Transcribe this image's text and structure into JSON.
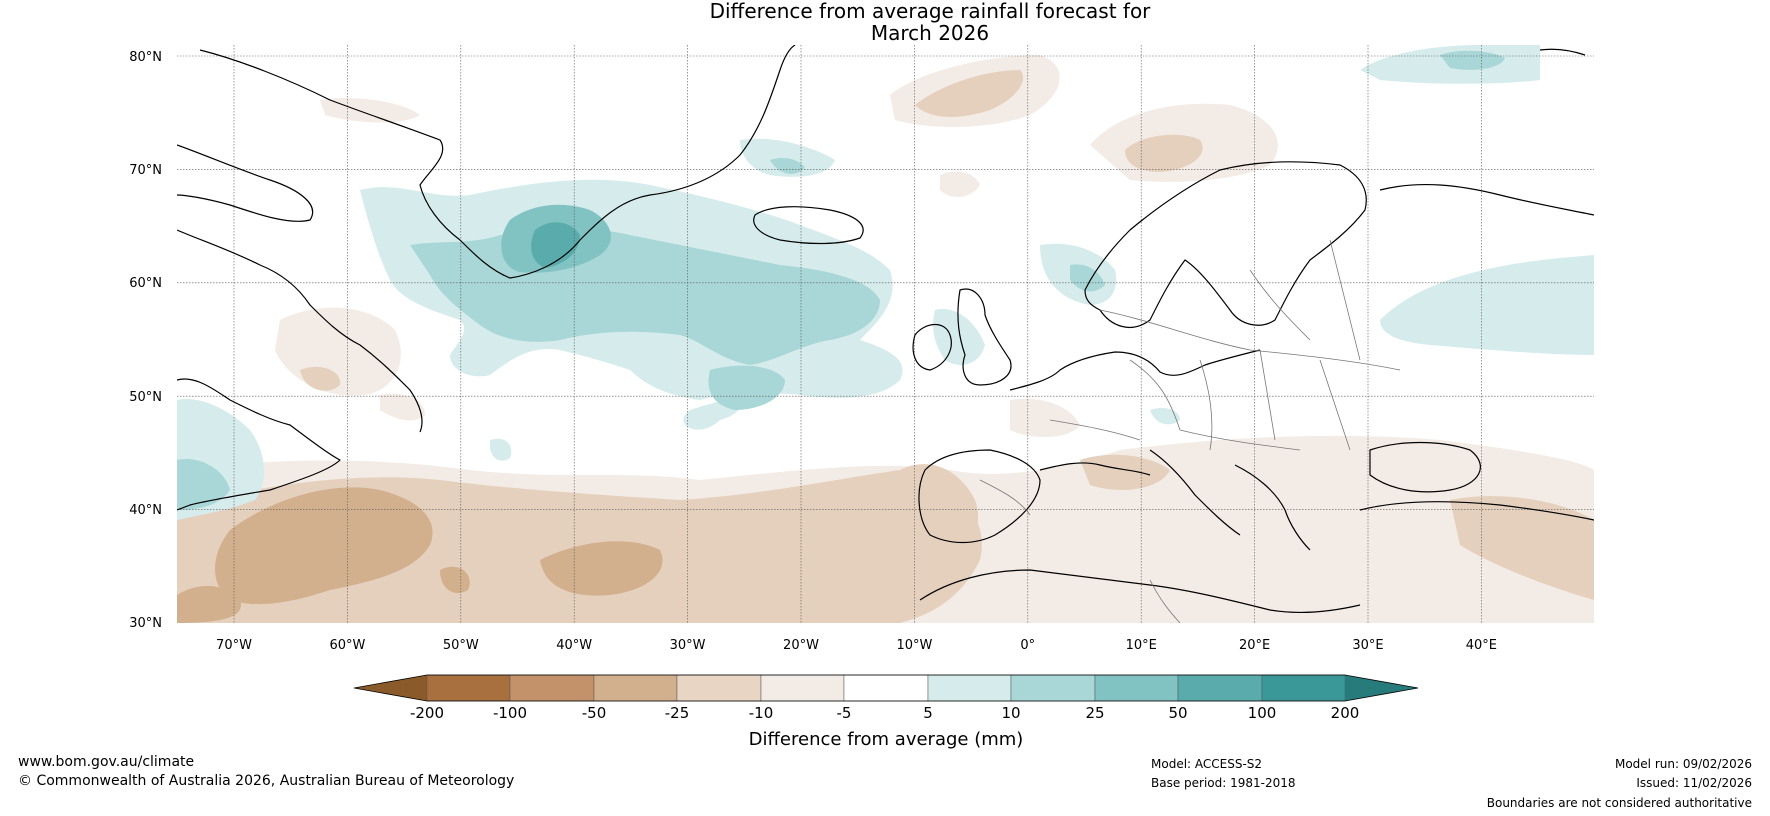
{
  "title": {
    "line1": "Difference from average rainfall forecast for",
    "line2": "March 2026"
  },
  "map": {
    "lat_labels": [
      "80°N",
      "70°N",
      "60°N",
      "50°N",
      "40°N",
      "30°N"
    ],
    "lon_labels": [
      "70°W",
      "60°W",
      "50°W",
      "40°W",
      "30°W",
      "20°W",
      "10°W",
      "0°",
      "10°E",
      "20°E",
      "30°E",
      "40°E"
    ],
    "regions": [
      {
        "name": "greenland-wet-core",
        "category": "50 to 100"
      },
      {
        "name": "north-atlantic-wet",
        "category": "10 to 25"
      },
      {
        "name": "subtropical-atlantic-dry",
        "category": "-50 to -25"
      },
      {
        "name": "iberia-dry",
        "category": "-10 to -5"
      },
      {
        "name": "barents-sea-dry",
        "category": "-25 to -10"
      },
      {
        "name": "russia-wet",
        "category": "5 to 10"
      }
    ]
  },
  "colorbar": {
    "ticks": [
      "-200",
      "-100",
      "-50",
      "-25",
      "-10",
      "-5",
      "5",
      "10",
      "25",
      "50",
      "100",
      "200"
    ],
    "colors": [
      "#8b5a2b",
      "#a8703e",
      "#c3916a",
      "#d3b08d",
      "#e8d5c4",
      "#f3ebe5",
      "#ffffff",
      "#d6ecec",
      "#a9d6d6",
      "#81c2c2",
      "#5aacac",
      "#3a9898",
      "#277b7b"
    ],
    "label": "Difference from average (mm)"
  },
  "footer": {
    "website": "www.bom.gov.au/climate",
    "copyright": "© Commonwealth of Australia 2026, Australian Bureau of Meteorology",
    "model": "Model: ACCESS-S2",
    "base_period": "Base period: 1981-2018",
    "model_run": "Model run: 09/02/2026",
    "issued": "Issued: 11/02/2026",
    "disclaimer": "Boundaries are not considered authoritative"
  }
}
